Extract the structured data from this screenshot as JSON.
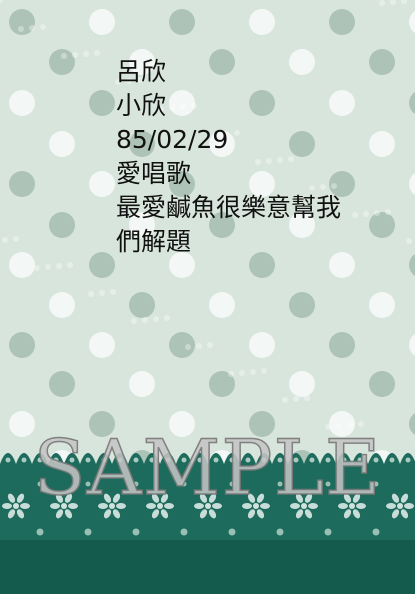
{
  "card": {
    "lines": [
      "呂欣",
      "小欣",
      "85/02/29",
      "愛唱歌",
      "最愛鹹魚很樂意幫我",
      "們解題"
    ],
    "watermark": "SAMPLE"
  },
  "colors": {
    "background": "#d8e5dc",
    "dot_teal": "#3d7f74",
    "dot_blue": "#5ab0d6",
    "dot_grey": "#a9bfb4",
    "dot_white": "#f4f8f5",
    "lace_green": "#1c6b5c"
  }
}
